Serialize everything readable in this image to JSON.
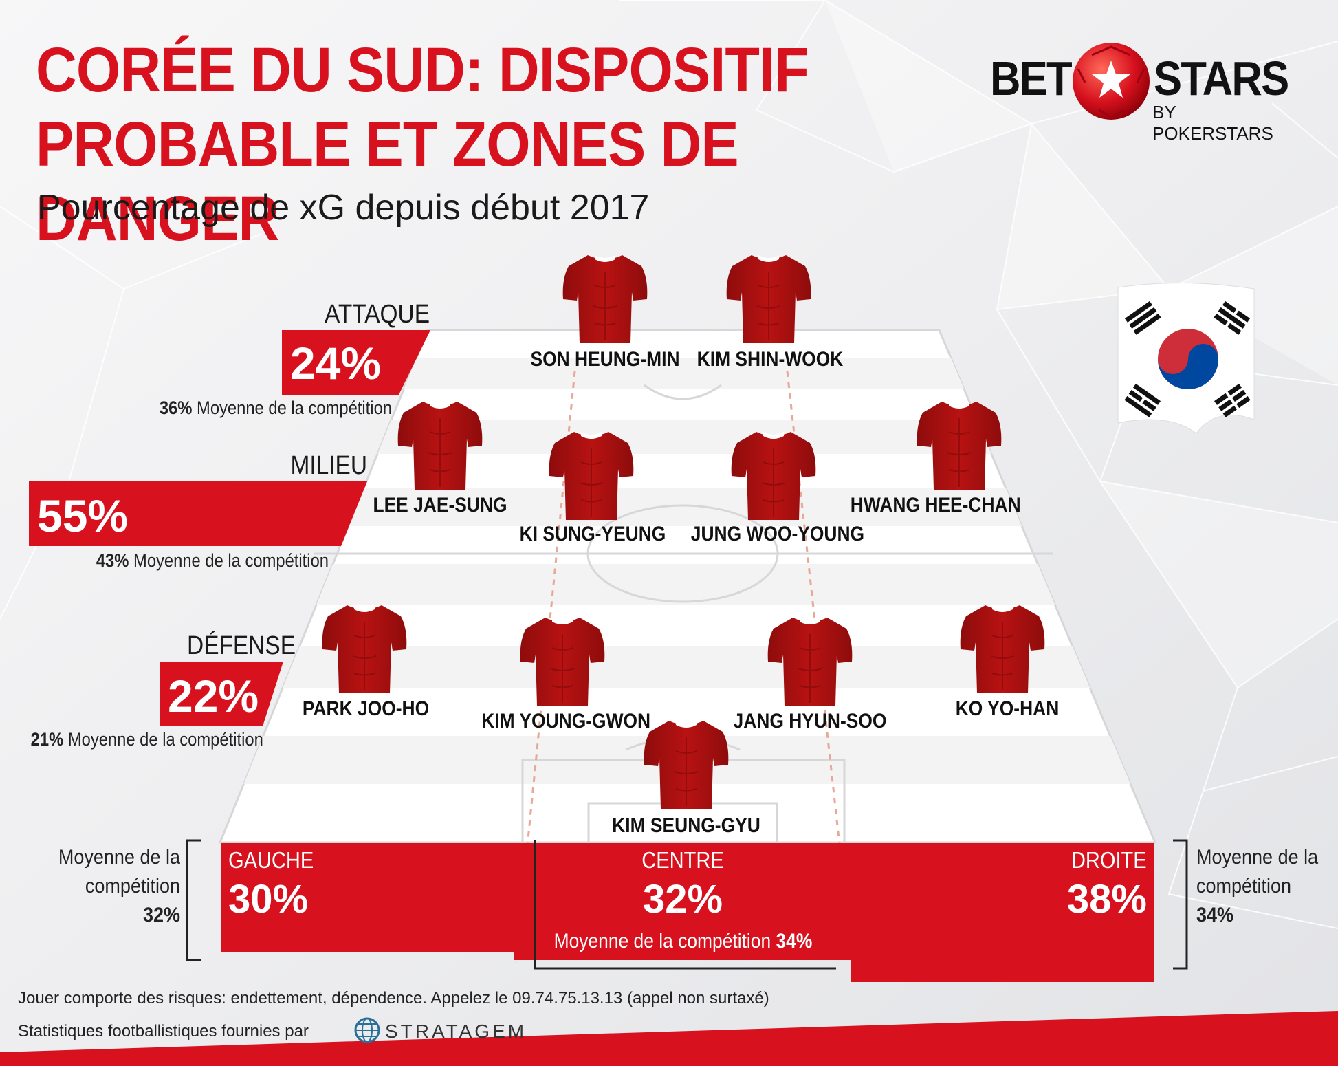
{
  "header": {
    "title_line1": "CORÉE DU SUD: DISPOSITIF",
    "title_line2": "PROBABLE ET ZONES DE DANGER",
    "subtitle": "Pourcentage de xG depuis début 2017"
  },
  "brand": {
    "bet": "BET",
    "stars": "STARS",
    "sub": "BY POKERSTARS"
  },
  "colors": {
    "accent": "#d7111e",
    "shirt": "#b81212"
  },
  "zones": {
    "attaque": {
      "label": "ATTAQUE",
      "pct": "24%",
      "avg_pct": "36%",
      "avg_text": "Moyenne de la compétition"
    },
    "milieu": {
      "label": "MILIEU",
      "pct": "55%",
      "avg_pct": "43%",
      "avg_text": "Moyenne de la compétition"
    },
    "defense": {
      "label": "DÉFENSE",
      "pct": "22%",
      "avg_pct": "21%",
      "avg_text": "Moyenne de la compétition"
    }
  },
  "players": {
    "p1": "SON HEUNG-MIN",
    "p2": "KIM SHIN-WOOK",
    "p3": "LEE JAE-SUNG",
    "p4": "KI SUNG-YEUNG",
    "p5": "JUNG WOO-YOUNG",
    "p6": "HWANG HEE-CHAN",
    "p7": "PARK JOO-HO",
    "p8": "KIM YOUNG-GWON",
    "p9": "JANG HYUN-SOO",
    "p10": "KO YO-HAN",
    "p11": "KIM SEUNG-GYU"
  },
  "columns": {
    "gauche": {
      "label": "GAUCHE",
      "pct": "30%"
    },
    "centre": {
      "label": "CENTRE",
      "pct": "32%",
      "avg_text": "Moyenne de la compétition",
      "avg_pct": "34%"
    },
    "droite": {
      "label": "DROITE",
      "pct": "38%"
    }
  },
  "side_avgs": {
    "left_line1": "Moyenne de la",
    "left_line2": "compétition",
    "left_pct": "32%",
    "right_line1": "Moyenne de la",
    "right_line2": "compétition",
    "right_pct": "34%"
  },
  "footer": {
    "disclaimer": "Jouer comporte des risques: endettement, dépendence. Appelez le 09.74.75.13.13 (appel non surtaxé)",
    "stats": "Statistiques footballistiques fournies par",
    "provider": "STRATAGEM"
  }
}
